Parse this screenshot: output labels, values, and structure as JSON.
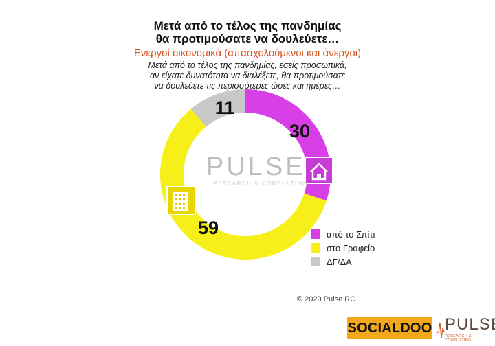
{
  "header": {
    "title_line1": "Μετά από το τέλος της πανδημίας",
    "title_line2": "θα προτιμούσατε να δουλεύετε…",
    "subtitle": "Ενεργοί οικονομικά  (απασχολούμενοι και άνεργοι)",
    "question_line1": "Μετά από το τέλος της πανδημίας, εσείς προσωπικά,",
    "question_line2": "αν είχατε δυνατότητα να διαλέξετε, θα προτιμούσατε",
    "question_line3": "να δουλεύετε τις περισσότερες ώρες και ημέρες…"
  },
  "chart_data": {
    "type": "pie",
    "donut": true,
    "categories": [
      "από το Σπίτι",
      "στο Γραφείο",
      "ΔΓ/ΔΑ"
    ],
    "values": [
      30,
      59,
      11
    ],
    "labels": [
      "30",
      "59",
      "11"
    ],
    "colors": [
      "#d93fe6",
      "#f7ef1a",
      "#c8c8c8"
    ],
    "icons": [
      "house-icon",
      "office-building-icon",
      ""
    ],
    "legend_position": "right"
  },
  "watermark": {
    "brand": "PULSE",
    "tagline": "RESEARCH & CONSULTING"
  },
  "footer": {
    "copyright": "© 2020 Pulse RC",
    "logo_socialdoo": "SOCIALDOO",
    "logo_pulse": "PULSE",
    "logo_pulse_tagline": "RESEARCH & CONSULTING"
  }
}
